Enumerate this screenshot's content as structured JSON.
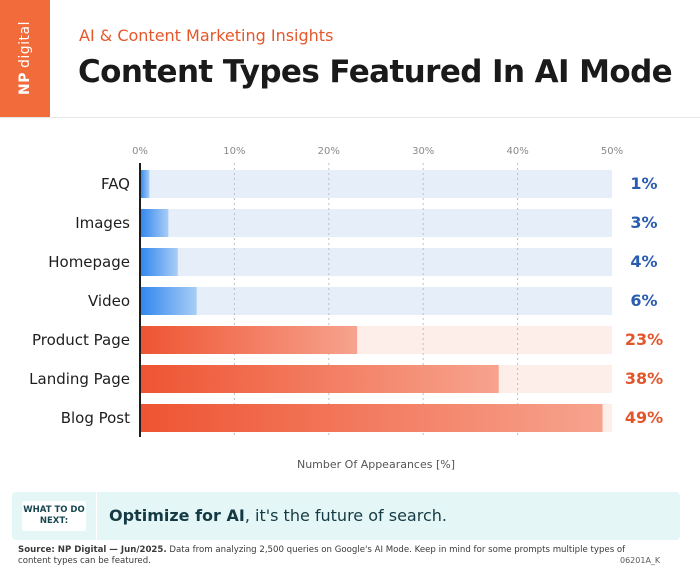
{
  "brand": {
    "np": "NP",
    "digital": "digital"
  },
  "header": {
    "subtitle": "AI & Content Marketing Insights",
    "title": "Content Types Featured In AI Mode"
  },
  "chart_data": {
    "type": "bar",
    "orientation": "horizontal",
    "categories": [
      "FAQ",
      "Images",
      "Homepage",
      "Video",
      "Product Page",
      "Landing Page",
      "Blog Post"
    ],
    "values": [
      1,
      3,
      4,
      6,
      23,
      38,
      49
    ],
    "value_labels": [
      "1%",
      "3%",
      "4%",
      "6%",
      "23%",
      "38%",
      "49%"
    ],
    "xlabel": "Number Of Appearances [%]",
    "xlim": [
      0,
      50
    ],
    "ticks": [
      0,
      10,
      20,
      30,
      40,
      50
    ],
    "tick_labels": [
      "0%",
      "10%",
      "20%",
      "30%",
      "40%",
      "50%"
    ],
    "grid": true,
    "colors": {
      "blue_bar_start": "#2f86ee",
      "blue_bar_end": "#a9cdf6",
      "blue_track": "#e5eef9",
      "blue_label": "#2a5db0",
      "orange_bar_start": "#ee5432",
      "orange_bar_end": "#f7a38e",
      "orange_track": "#fdeee9",
      "orange_label": "#e2562c"
    }
  },
  "next_step": {
    "tag": "WHAT TO DO NEXT:",
    "bold": "Optimize for AI",
    "rest": ", it's the future of search."
  },
  "footer": {
    "source_bold": "Source: NP Digital — Jun/2025.",
    "source_text": " Data from analyzing 2,500 queries on Google's AI Mode. Keep in mind for some prompts multiple types of content types can be featured.",
    "code": "06201A_K"
  }
}
